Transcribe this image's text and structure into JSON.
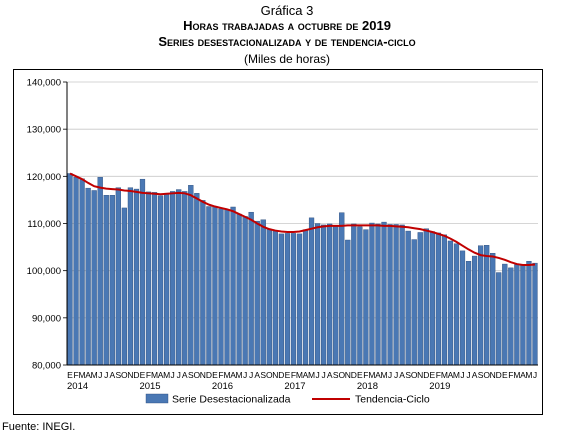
{
  "header": {
    "label": "Gráfica 3",
    "title": "Horas trabajadas a octubre de 2019",
    "subtitle": "Series desestacionalizada y de tendencia-ciclo",
    "units": "(Miles de horas)"
  },
  "source": "Fuente: INEGI.",
  "colors": {
    "bar": "#4a78b4",
    "bar_edge": "#2a4a78",
    "trend": "#c00000"
  },
  "chart_data": {
    "type": "bar",
    "ylim": [
      80000,
      140000
    ],
    "y_ticks": [
      "80,000",
      "90,000",
      "100,000",
      "110,000",
      "120,000",
      "130,000",
      "140,000"
    ],
    "month_letters": [
      "E",
      "F",
      "M",
      "A",
      "M",
      "J",
      "J",
      "A",
      "S",
      "O",
      "N",
      "D"
    ],
    "years": [
      "2014",
      "2015",
      "2016",
      "2017",
      "2018",
      "2019"
    ],
    "start": "2014-01",
    "series": [
      {
        "name": "Serie Desestacionalizada",
        "type": "bar",
        "values": [
          120600,
          119800,
          119500,
          117500,
          117000,
          119800,
          116000,
          116000,
          117600,
          113300,
          117600,
          117300,
          119400,
          116700,
          116600,
          115900,
          116200,
          116800,
          117200,
          116800,
          118100,
          116400,
          114900,
          113600,
          113600,
          113100,
          112900,
          113500,
          112000,
          111500,
          112400,
          110500,
          110800,
          108800,
          108400,
          107800,
          107900,
          107900,
          107800,
          108700,
          111200,
          110000,
          109700,
          109900,
          109500,
          112300,
          106500,
          109900,
          109300,
          108700,
          110100,
          109900,
          110300,
          109800,
          109800,
          109700,
          108400,
          106600,
          108100,
          108900,
          108300,
          108000,
          107600,
          106300,
          105700,
          104200,
          102000,
          103100,
          105300,
          105400,
          103700,
          99600,
          101400,
          100600,
          101300,
          101200,
          102000,
          101600
        ]
      },
      {
        "name": "Tendencia-Ciclo",
        "type": "line",
        "values": [
          120600,
          120000,
          119400,
          118600,
          117900,
          117600,
          117400,
          117300,
          117200,
          117000,
          116900,
          116700,
          116500,
          116400,
          116300,
          116200,
          116300,
          116400,
          116500,
          116400,
          116000,
          115300,
          114600,
          114000,
          113600,
          113300,
          113000,
          112600,
          112000,
          111400,
          110800,
          110000,
          109300,
          108800,
          108500,
          108300,
          108200,
          108200,
          108300,
          108600,
          108900,
          109200,
          109400,
          109500,
          109500,
          109500,
          109600,
          109600,
          109600,
          109600,
          109600,
          109600,
          109500,
          109500,
          109400,
          109300,
          109200,
          109000,
          108800,
          108500,
          108200,
          107800,
          107400,
          106800,
          106100,
          105300,
          104500,
          103800,
          103300,
          103100,
          103000,
          102700,
          102300,
          101800,
          101400,
          101200,
          101200,
          101300
        ]
      }
    ],
    "legend": {
      "position": "bottom"
    }
  }
}
